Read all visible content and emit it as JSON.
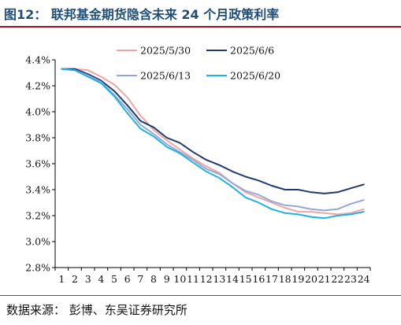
{
  "figure_title": "图12：  联邦基金期货隐含未来 24 个月政策利率",
  "source": "数据来源：  彭博、东吴证券研究所",
  "colors": {
    "title": "#1f4e79",
    "rule": "#8a1a1a",
    "axis": "#000000"
  },
  "chart_data": {
    "type": "line",
    "title": "",
    "xlabel": "",
    "ylabel": "",
    "x": [
      1,
      2,
      3,
      4,
      5,
      6,
      7,
      8,
      9,
      10,
      11,
      12,
      13,
      14,
      15,
      16,
      17,
      18,
      19,
      20,
      21,
      22,
      23,
      24
    ],
    "x_tick_labels": [
      "1",
      "2",
      "3",
      "4",
      "5",
      "6",
      "7",
      "8",
      "9",
      "10",
      "11",
      "12",
      "13",
      "14",
      "15",
      "16",
      "17",
      "18",
      "19",
      "20",
      "21",
      "22",
      "23",
      "24"
    ],
    "y_tick_labels": [
      "2.8%",
      "3.0%",
      "3.2%",
      "3.4%",
      "3.6%",
      "3.8%",
      "4.0%",
      "4.2%",
      "4.4%"
    ],
    "y_ticks": [
      2.8,
      3.0,
      3.2,
      3.4,
      3.6,
      3.8,
      4.0,
      4.2,
      4.4
    ],
    "ylim": [
      2.8,
      4.4
    ],
    "grid": false,
    "legend_position": "top",
    "series": [
      {
        "name": "2025/5/30",
        "color": "#f4a3a5",
        "values": [
          4.33,
          4.33,
          4.32,
          4.27,
          4.21,
          4.11,
          3.97,
          3.86,
          3.78,
          3.71,
          3.64,
          3.58,
          3.53,
          3.45,
          3.38,
          3.34,
          3.3,
          3.26,
          3.23,
          3.23,
          3.22,
          3.21,
          3.22,
          3.25
        ]
      },
      {
        "name": "2025/6/6",
        "color": "#1f3a6e",
        "values": [
          4.33,
          4.33,
          4.29,
          4.24,
          4.16,
          4.05,
          3.93,
          3.88,
          3.8,
          3.76,
          3.69,
          3.63,
          3.59,
          3.54,
          3.5,
          3.47,
          3.43,
          3.4,
          3.4,
          3.38,
          3.37,
          3.38,
          3.41,
          3.44
        ]
      },
      {
        "name": "2025/6/13",
        "color": "#8fa9d9",
        "values": [
          4.33,
          4.32,
          4.28,
          4.23,
          4.13,
          4.02,
          3.9,
          3.83,
          3.75,
          3.69,
          3.63,
          3.56,
          3.52,
          3.45,
          3.39,
          3.36,
          3.31,
          3.28,
          3.27,
          3.25,
          3.24,
          3.25,
          3.29,
          3.32
        ]
      },
      {
        "name": "2025/6/20",
        "color": "#20b0e6",
        "values": [
          4.33,
          4.32,
          4.27,
          4.22,
          4.12,
          3.99,
          3.87,
          3.81,
          3.73,
          3.68,
          3.61,
          3.54,
          3.49,
          3.42,
          3.34,
          3.3,
          3.25,
          3.22,
          3.21,
          3.19,
          3.18,
          3.2,
          3.21,
          3.23
        ]
      }
    ]
  }
}
